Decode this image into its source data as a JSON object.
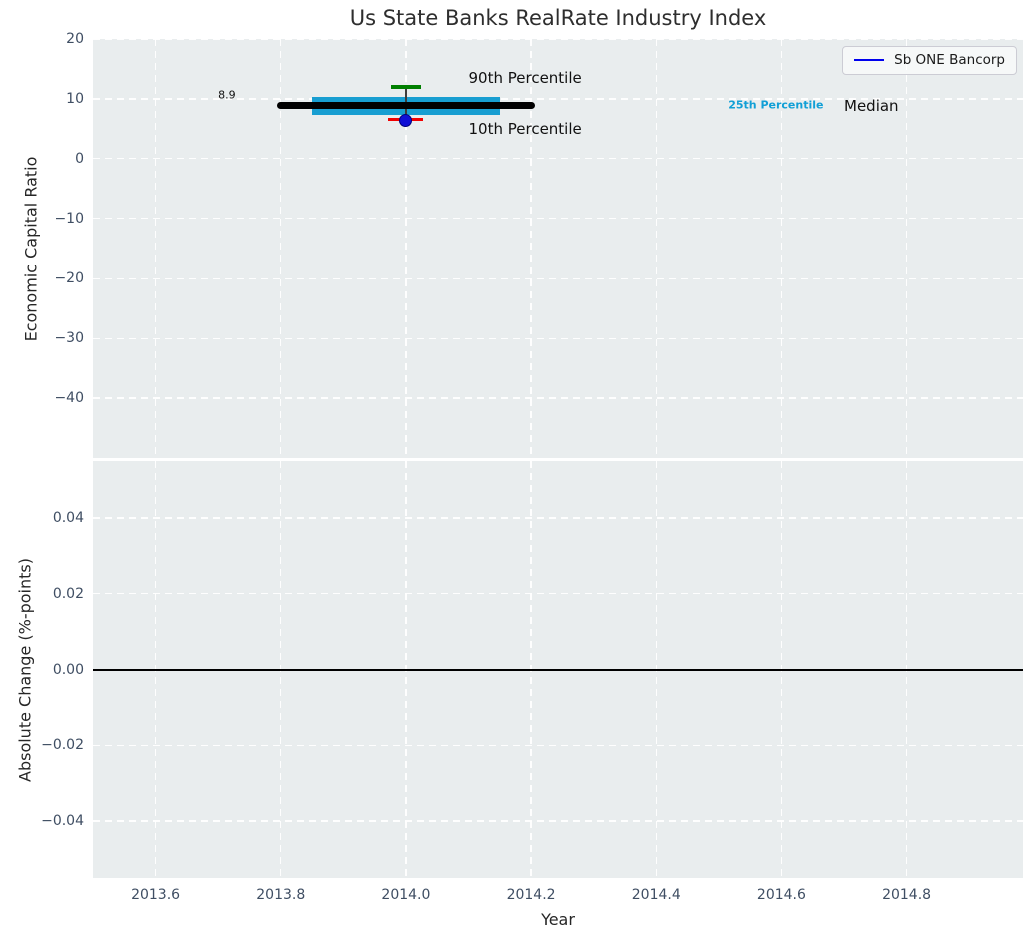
{
  "figure": {
    "title": "Us State Banks RealRate Industry Index",
    "xlabel": "Year",
    "xlim": [
      2013.5,
      2014.986
    ],
    "xtick_values": [
      2013.6,
      2013.8,
      2014.0,
      2014.2,
      2014.4,
      2014.6,
      2014.8
    ],
    "xtick_labels": [
      "2013.6",
      "2013.8",
      "2014.0",
      "2014.2",
      "2014.4",
      "2014.6",
      "2014.8"
    ],
    "colors": {
      "plot_background": "#e9edee",
      "grid": "rgba(255,255,255,0.95)",
      "tick_label": "#3f4e63",
      "axis_label": "#262626",
      "title": "#2e2e2e"
    }
  },
  "legend": {
    "label": "Sb ONE Bancorp",
    "line_color": "#0000ee"
  },
  "chart_data": [
    {
      "type": "line",
      "panel": "top",
      "title": "Us State Banks RealRate Industry Index",
      "ylabel": "Economic Capital Ratio",
      "ylim": [
        -50,
        20
      ],
      "ytick_values": [
        20,
        10,
        0,
        -10,
        -20,
        -30,
        -40
      ],
      "ytick_labels": [
        "20",
        "10",
        "0",
        "−10",
        "−20",
        "−30",
        "−40"
      ],
      "grid": "on",
      "series": [
        {
          "name": "industry-median",
          "kind": "segment",
          "color": "#000000",
          "thickness": 7,
          "x_start": 2013.8,
          "x_end": 2014.2,
          "y": 8.9
        },
        {
          "name": "interquartile-band-25th-75th",
          "kind": "band",
          "color": "#189ed1",
          "x_start": 2013.85,
          "x_end": 2014.15,
          "y_low": 7.3,
          "y_high": 10.3
        },
        {
          "name": "percentile-whisker-10th-90th",
          "kind": "errorbar",
          "x": 2014.0,
          "y_low": 6.5,
          "y_high": 12.0,
          "line_color": "#3c3c3c",
          "cap_high_color": "#007f00",
          "cap_low_color": "#f20000"
        },
        {
          "name": "sb-one-bancorp",
          "kind": "point",
          "color": "#0f0fd6",
          "edge_color": "#00007a",
          "x": 2014.0,
          "y": 6.4,
          "size": 13
        }
      ],
      "annotations": [
        {
          "text": "8.9",
          "x": 2013.7,
          "y": 10.7,
          "size": 11,
          "color": "#111111",
          "weight": "normal"
        },
        {
          "text": "90th Percentile",
          "x": 2014.1,
          "y": 13.5,
          "size": 15,
          "color": "#111111",
          "weight": "normal"
        },
        {
          "text": "10th Percentile",
          "x": 2014.1,
          "y": 5.0,
          "size": 15,
          "color": "#111111",
          "weight": "normal"
        },
        {
          "text": "25th Percentile",
          "x": 2014.515,
          "y": 9.0,
          "size": 11,
          "color": "#109fd6",
          "weight": "bold"
        },
        {
          "text": "Median",
          "x": 2014.7,
          "y": 8.8,
          "size": 15,
          "color": "#111111",
          "weight": "normal"
        }
      ]
    },
    {
      "type": "line",
      "panel": "bottom",
      "ylabel": "Absolute Change (%-points)",
      "xlabel": "Year",
      "ylim": [
        -0.055,
        0.055
      ],
      "ytick_values": [
        0.04,
        0.02,
        0,
        -0.02,
        -0.04
      ],
      "ytick_labels": [
        "0.04",
        "0.02",
        "0.00",
        "−0.02",
        "−0.04"
      ],
      "grid": "on",
      "series": [
        {
          "name": "zero-change-baseline",
          "kind": "segment",
          "color": "#000000",
          "thickness": 2,
          "x_start": 2013.5,
          "x_end": 2014.986,
          "y": 0
        }
      ],
      "annotations": []
    }
  ]
}
